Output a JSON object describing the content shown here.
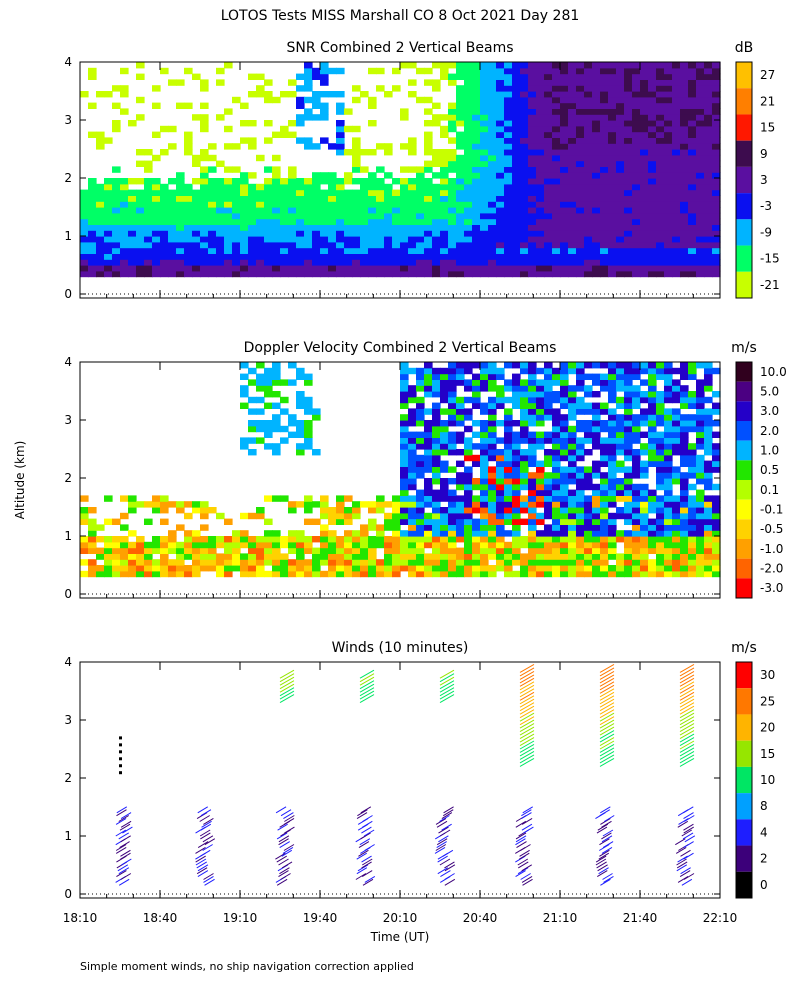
{
  "figure": {
    "title": "LOTOS Tests MISS Marshall CO   8 Oct 2021 Day 281",
    "ylabel": "Altitude (km)",
    "xlabel": "Time (UT)",
    "footnote": "Simple moment winds, no ship navigation correction applied"
  },
  "chart_data": [
    {
      "type": "heatmap",
      "title": "SNR Combined 2 Vertical Beams",
      "ylabel": "Altitude (km)",
      "xlim": [
        "18:10",
        "22:10"
      ],
      "ylim": [
        0,
        4
      ],
      "yticks": [
        "0",
        "1",
        "2",
        "3",
        "4"
      ],
      "colorbar": {
        "unit": "dB",
        "labels": [
          "27",
          "21",
          "15",
          "9",
          "3",
          "-3",
          "-9",
          "-15",
          "-21"
        ],
        "colors": [
          "#ffc000",
          "#ff7f00",
          "#ff1800",
          "#3d0c4e",
          "#5a0fa0",
          "#0a10f0",
          "#00b4ff",
          "#00ff66",
          "#c8ff00"
        ]
      }
    },
    {
      "type": "heatmap",
      "title": "Doppler Velocity Combined 2 Vertical Beams",
      "ylabel": "Altitude (km)",
      "xlim": [
        "18:10",
        "22:10"
      ],
      "ylim": [
        0,
        4
      ],
      "yticks": [
        "0",
        "1",
        "2",
        "3",
        "4"
      ],
      "colorbar": {
        "unit": "m/s",
        "labels": [
          "10.0",
          "5.0",
          "3.0",
          "2.0",
          "1.0",
          "0.5",
          "0.1",
          "-0.1",
          "-0.5",
          "-1.0",
          "-2.0",
          "-3.0"
        ],
        "colors": [
          "#30001e",
          "#4b0082",
          "#2400c8",
          "#0050ff",
          "#00b4ff",
          "#22e600",
          "#b4ff00",
          "#ffff00",
          "#ffd200",
          "#ffa000",
          "#ff6400",
          "#ff0000"
        ]
      }
    },
    {
      "type": "scatter",
      "title": "Winds (10 minutes)",
      "ylabel": "Altitude (km)",
      "xlabel": "Time (UT)",
      "xlim": [
        "18:10",
        "22:10"
      ],
      "ylim": [
        0,
        4
      ],
      "xticks": [
        "18:10",
        "18:40",
        "19:10",
        "19:40",
        "20:10",
        "20:40",
        "21:10",
        "21:40",
        "22:10"
      ],
      "yticks": [
        "0",
        "1",
        "2",
        "3",
        "4"
      ],
      "profile_times": [
        "18:25",
        "18:55",
        "19:25",
        "19:55",
        "20:25",
        "20:55",
        "21:25",
        "21:55"
      ],
      "colorbar": {
        "unit": "m/s",
        "labels": [
          "30",
          "25",
          "20",
          "15",
          "10",
          "8",
          "4",
          "2",
          "0"
        ],
        "colors": [
          "#ff0000",
          "#ff7800",
          "#ffb400",
          "#96e600",
          "#00e664",
          "#00a0ff",
          "#1e1eff",
          "#3c007a",
          "#000000"
        ]
      }
    }
  ]
}
